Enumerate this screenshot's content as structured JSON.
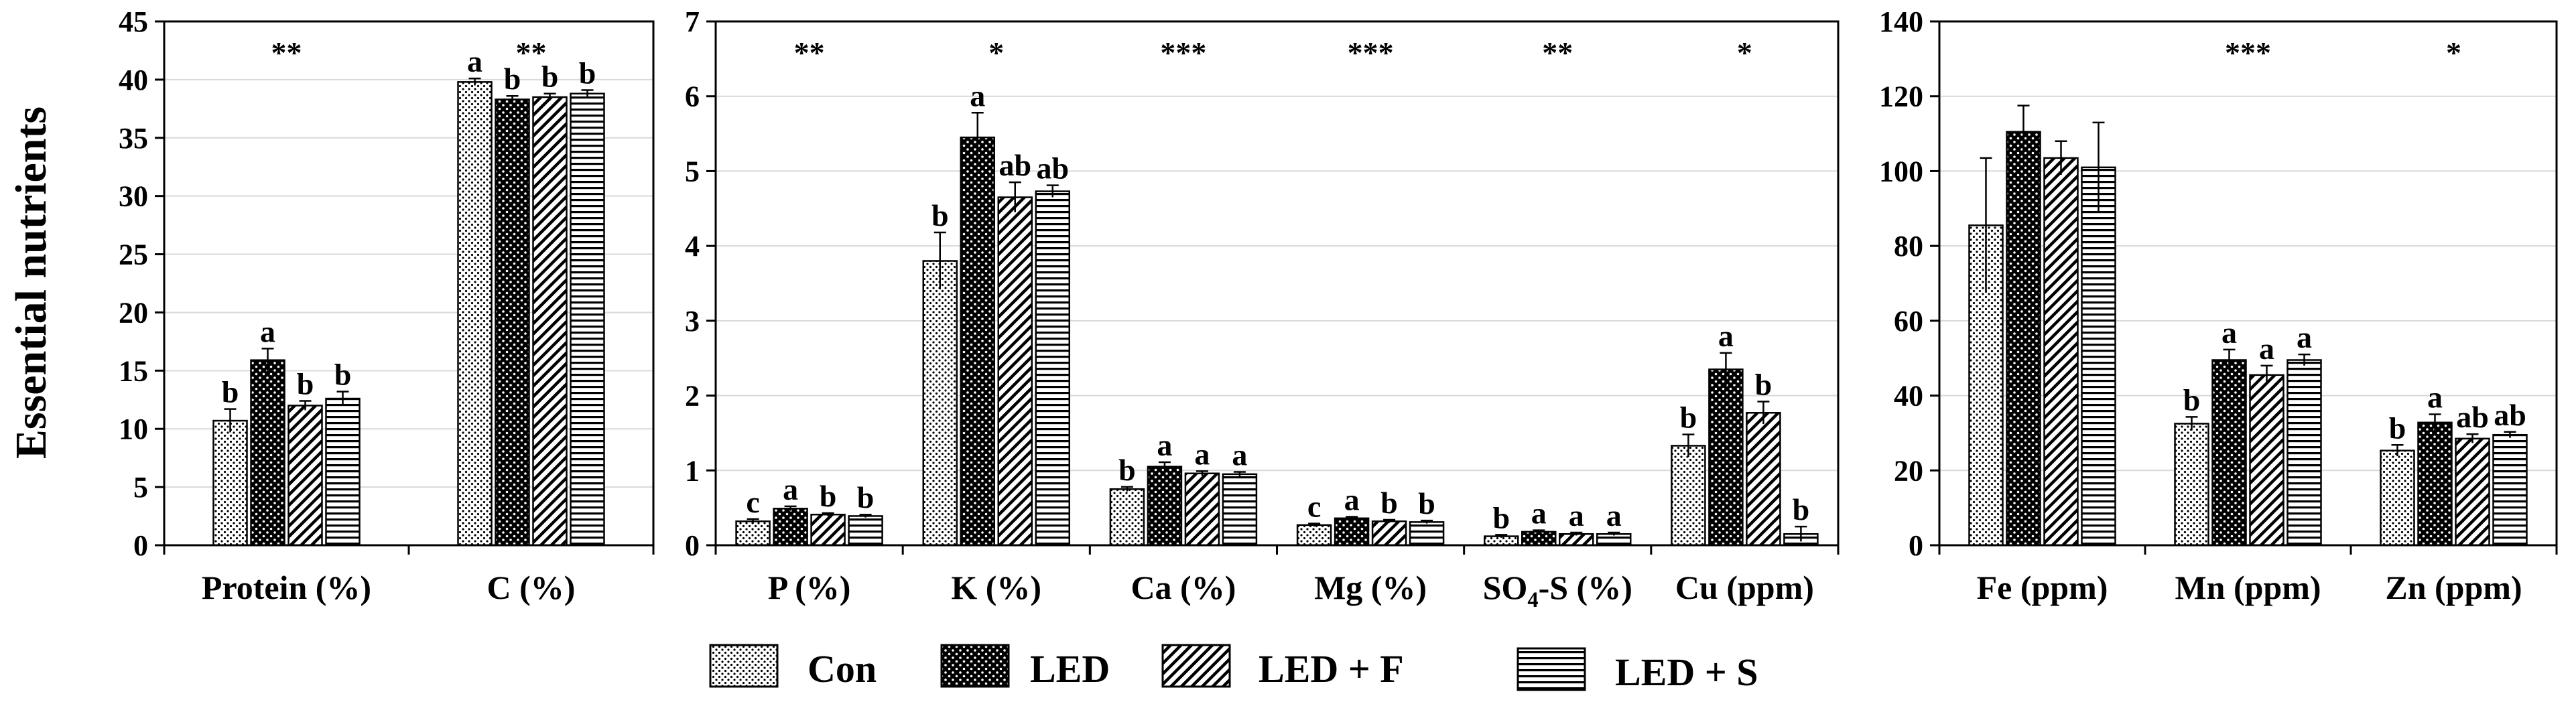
{
  "figure": {
    "ylabel": "Essential nutrients",
    "legend": [
      {
        "name": "Con",
        "pattern": "dots-light"
      },
      {
        "name": "LED",
        "pattern": "dots-dark"
      },
      {
        "name": "LED + F",
        "pattern": "diagonal"
      },
      {
        "name": "LED + S",
        "pattern": "horizontal"
      }
    ],
    "colors": {
      "axis": "#000000",
      "grid": "#d9d9d9",
      "bar_dark": "#000000",
      "bar_light": "#ffffff"
    }
  },
  "chart_data": [
    {
      "type": "bar",
      "ylim": [
        0,
        45
      ],
      "yticks": [
        0,
        5,
        10,
        15,
        20,
        25,
        30,
        35,
        40,
        45
      ],
      "grid": true,
      "categories": [
        "Protein (%)",
        "C (%)"
      ],
      "significance": [
        "**",
        "**"
      ],
      "series": [
        {
          "name": "Con",
          "values": [
            10.7,
            39.8
          ],
          "errors": [
            1.0,
            0.3
          ],
          "letters": [
            "b",
            "a"
          ]
        },
        {
          "name": "LED",
          "values": [
            15.9,
            38.3
          ],
          "errors": [
            1.0,
            0.3
          ],
          "letters": [
            "a",
            "b"
          ]
        },
        {
          "name": "LED + F",
          "values": [
            12.0,
            38.5
          ],
          "errors": [
            0.4,
            0.3
          ],
          "letters": [
            "b",
            "b"
          ]
        },
        {
          "name": "LED + S",
          "values": [
            12.6,
            38.8
          ],
          "errors": [
            0.6,
            0.3
          ],
          "letters": [
            "b",
            "b"
          ]
        }
      ]
    },
    {
      "type": "bar",
      "ylim": [
        0,
        7
      ],
      "yticks": [
        0,
        1,
        2,
        3,
        4,
        5,
        6,
        7
      ],
      "grid": true,
      "categories": [
        "P (%)",
        "K (%)",
        "Ca (%)",
        "Mg (%)",
        "SO4-S (%)",
        "Cu (ppm)"
      ],
      "category_sub": {
        "4": {
          "pre": "SO",
          "sub": "4",
          "post": "-S (%)"
        }
      },
      "significance": [
        "**",
        "*",
        "***",
        "***",
        "**",
        "*"
      ],
      "series": [
        {
          "name": "Con",
          "values": [
            0.32,
            3.8,
            0.75,
            0.27,
            0.12,
            1.33
          ],
          "errors": [
            0.03,
            0.38,
            0.03,
            0.02,
            0.02,
            0.15
          ],
          "letters": [
            "c",
            "b",
            "b",
            "c",
            "b",
            "b"
          ]
        },
        {
          "name": "LED",
          "values": [
            0.49,
            5.45,
            1.05,
            0.36,
            0.18,
            2.35
          ],
          "errors": [
            0.03,
            0.33,
            0.06,
            0.02,
            0.02,
            0.22
          ],
          "letters": [
            "a",
            "a",
            "a",
            "a",
            "a",
            "a"
          ]
        },
        {
          "name": "LED + F",
          "values": [
            0.41,
            4.65,
            0.96,
            0.32,
            0.15,
            1.77
          ],
          "errors": [
            0.02,
            0.2,
            0.03,
            0.02,
            0.02,
            0.15
          ],
          "letters": [
            "b",
            "ab",
            "a",
            "b",
            "a",
            "b"
          ]
        },
        {
          "name": "LED + S",
          "values": [
            0.39,
            4.73,
            0.95,
            0.31,
            0.15,
            0.15
          ],
          "errors": [
            0.02,
            0.08,
            0.03,
            0.02,
            0.02,
            0.1
          ],
          "letters": [
            "b",
            "ab",
            "a",
            "b",
            "a",
            "b"
          ]
        }
      ]
    },
    {
      "type": "bar",
      "ylim": [
        0,
        140
      ],
      "yticks": [
        0,
        20,
        40,
        60,
        80,
        100,
        120,
        140
      ],
      "grid": true,
      "categories": [
        "Fe (ppm)",
        "Mn (ppm)",
        "Zn (ppm)"
      ],
      "significance": [
        "",
        "***",
        "*"
      ],
      "series": [
        {
          "name": "Con",
          "values": [
            85.5,
            32.5,
            25.3
          ],
          "errors": [
            18,
            1.8,
            1.5
          ],
          "letters": [
            "",
            "b",
            "b"
          ]
        },
        {
          "name": "LED",
          "values": [
            110.5,
            49.5,
            32.8
          ],
          "errors": [
            7,
            2.8,
            2.2
          ],
          "letters": [
            "",
            "a",
            "a"
          ]
        },
        {
          "name": "LED + F",
          "values": [
            103.5,
            45.5,
            28.5
          ],
          "errors": [
            4.5,
            2.5,
            1.2
          ],
          "letters": [
            "",
            "a",
            "ab"
          ]
        },
        {
          "name": "LED + S",
          "values": [
            101,
            49.5,
            29.5
          ],
          "errors": [
            12,
            1.5,
            0.8
          ],
          "letters": [
            "",
            "a",
            "ab"
          ]
        }
      ]
    }
  ]
}
